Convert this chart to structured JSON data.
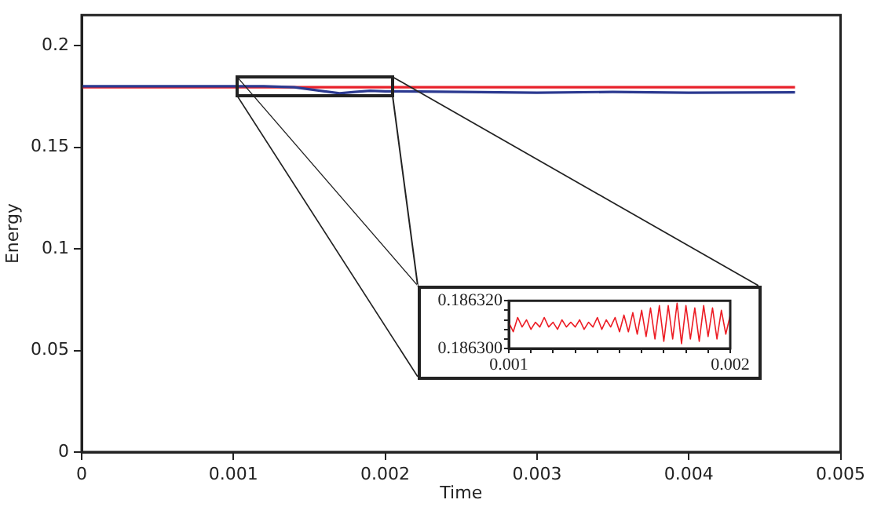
{
  "chart_data": [
    {
      "type": "line",
      "xlabel": "Time",
      "ylabel": "Energy",
      "xlim": [
        0,
        0.005
      ],
      "ylim": [
        0,
        0.215
      ],
      "xticks": [
        0,
        0.001,
        0.002,
        0.003,
        0.004,
        0.005
      ],
      "yticks": [
        0,
        0.05,
        0.1,
        0.15,
        0.2
      ],
      "grid": false,
      "legend": false,
      "marker": "none",
      "line_style": "solid",
      "series": [
        {
          "color": "#2b3990",
          "x": [
            0,
            0.0012,
            0.0014,
            0.0016,
            0.0017,
            0.0018,
            0.0019,
            0.002,
            0.0025,
            0.003,
            0.0035,
            0.004,
            0.0047
          ],
          "values": [
            0.18,
            0.18,
            0.1795,
            0.1775,
            0.1765,
            0.1772,
            0.1778,
            0.1775,
            0.1772,
            0.1768,
            0.1772,
            0.1768,
            0.177
          ]
        },
        {
          "color": "#e8202a",
          "x": [
            0,
            0.0047
          ],
          "values": [
            0.1795,
            0.1795
          ]
        }
      ]
    },
    {
      "type": "line",
      "xlim": [
        0.001,
        0.002
      ],
      "ylim": [
        0.1863,
        0.18632
      ],
      "xticks": [
        {
          "value": 0.001,
          "label": "0.001"
        },
        {
          "value": 0.0011,
          "label": null
        },
        {
          "value": 0.0012,
          "label": null
        },
        {
          "value": 0.0013,
          "label": null
        },
        {
          "value": 0.0014,
          "label": null
        },
        {
          "value": 0.0015,
          "label": null
        },
        {
          "value": 0.0016,
          "label": null
        },
        {
          "value": 0.0017,
          "label": null
        },
        {
          "value": 0.0018,
          "label": null
        },
        {
          "value": 0.0019,
          "label": null
        },
        {
          "value": 0.002,
          "label": "0.002"
        }
      ],
      "yticks": [
        {
          "value": 0.1863,
          "label": "0.186300"
        },
        {
          "value": 0.186304,
          "label": null
        },
        {
          "value": 0.186308,
          "label": null
        },
        {
          "value": 0.186312,
          "label": null
        },
        {
          "value": 0.186316,
          "label": null
        },
        {
          "value": 0.18632,
          "label": "0.186320"
        }
      ],
      "grid": false,
      "legend": false,
      "marker": "none",
      "line_style": "solid",
      "series": [
        {
          "color": "#ed1c24",
          "x": [
            0.001,
            0.00102,
            0.00104,
            0.00106,
            0.00108,
            0.0011,
            0.00112,
            0.00114,
            0.00116,
            0.00118,
            0.0012,
            0.00122,
            0.00124,
            0.00126,
            0.00128,
            0.0013,
            0.00132,
            0.00134,
            0.00136,
            0.00138,
            0.0014,
            0.00142,
            0.00144,
            0.00146,
            0.00148,
            0.0015,
            0.00152,
            0.00154,
            0.00156,
            0.00158,
            0.0016,
            0.00162,
            0.00164,
            0.00166,
            0.00168,
            0.0017,
            0.00172,
            0.00174,
            0.00176,
            0.00178,
            0.0018,
            0.00182,
            0.00184,
            0.00186,
            0.00188,
            0.0019,
            0.00192,
            0.00194,
            0.00196,
            0.00198,
            0.002
          ],
          "values": [
            0.186311,
            0.186307,
            0.186313,
            0.186309,
            0.186312,
            0.186308,
            0.186311,
            0.186309,
            0.186313,
            0.186309,
            0.186311,
            0.186308,
            0.186312,
            0.186309,
            0.186311,
            0.186309,
            0.186312,
            0.186308,
            0.186311,
            0.186309,
            0.186313,
            0.186308,
            0.186312,
            0.186309,
            0.186313,
            0.186307,
            0.186314,
            0.186307,
            0.186315,
            0.186306,
            0.186316,
            0.186305,
            0.186317,
            0.186304,
            0.186318,
            0.186303,
            0.186318,
            0.186304,
            0.186319,
            0.186302,
            0.186318,
            0.186304,
            0.186317,
            0.186303,
            0.186318,
            0.186305,
            0.186317,
            0.186304,
            0.186316,
            0.186306,
            0.186314
          ]
        }
      ]
    }
  ]
}
